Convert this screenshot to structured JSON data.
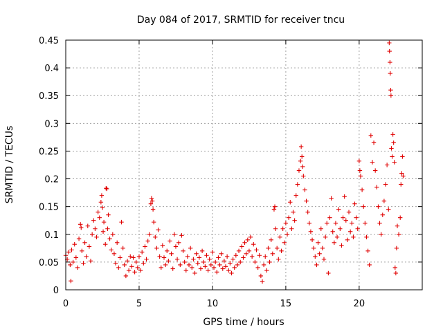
{
  "chart_data": {
    "type": "scatter",
    "title": "Day 084 of 2017, SRMTID for receiver tncu",
    "xlabel": "GPS time / hours",
    "ylabel": "SRMTID / TECUs",
    "xlim": [
      0,
      24.3
    ],
    "ylim": [
      0,
      0.45
    ],
    "x_ticks": [
      0,
      5,
      10,
      15,
      20
    ],
    "x_tick_labels": [
      "0",
      "5",
      "10",
      "15",
      "20"
    ],
    "y_ticks": [
      0,
      0.05,
      0.1,
      0.15,
      0.2,
      0.25,
      0.3,
      0.35,
      0.4,
      0.45
    ],
    "y_tick_labels": [
      "0",
      "0.05",
      "0.1",
      "0.15",
      "0.2",
      "0.25",
      "0.3",
      "0.35",
      "0.4",
      "0.45"
    ],
    "grid": true,
    "marker": "+",
    "color": "#e00000",
    "series": [
      {
        "name": "SRMTID",
        "points": [
          [
            0.0,
            0.062
          ],
          [
            0.1,
            0.055
          ],
          [
            0.2,
            0.068
          ],
          [
            0.3,
            0.045
          ],
          [
            0.35,
            0.016
          ],
          [
            0.4,
            0.072
          ],
          [
            0.5,
            0.05
          ],
          [
            0.6,
            0.082
          ],
          [
            0.7,
            0.058
          ],
          [
            0.8,
            0.04
          ],
          [
            0.9,
            0.092
          ],
          [
            1.0,
            0.118
          ],
          [
            1.05,
            0.112
          ],
          [
            1.1,
            0.07
          ],
          [
            1.2,
            0.048
          ],
          [
            1.3,
            0.085
          ],
          [
            1.4,
            0.06
          ],
          [
            1.5,
            0.115
          ],
          [
            1.6,
            0.078
          ],
          [
            1.7,
            0.052
          ],
          [
            1.8,
            0.1
          ],
          [
            1.9,
            0.125
          ],
          [
            2.0,
            0.11
          ],
          [
            2.1,
            0.095
          ],
          [
            2.2,
            0.14
          ],
          [
            2.3,
            0.13
          ],
          [
            2.4,
            0.158
          ],
          [
            2.45,
            0.17
          ],
          [
            2.5,
            0.148
          ],
          [
            2.55,
            0.105
          ],
          [
            2.6,
            0.122
          ],
          [
            2.7,
            0.082
          ],
          [
            2.75,
            0.183
          ],
          [
            2.8,
            0.182
          ],
          [
            2.85,
            0.11
          ],
          [
            2.9,
            0.135
          ],
          [
            3.0,
            0.092
          ],
          [
            3.1,
            0.072
          ],
          [
            3.2,
            0.1
          ],
          [
            3.3,
            0.065
          ],
          [
            3.4,
            0.048
          ],
          [
            3.5,
            0.085
          ],
          [
            3.6,
            0.04
          ],
          [
            3.7,
            0.058
          ],
          [
            3.8,
            0.122
          ],
          [
            3.9,
            0.075
          ],
          [
            4.0,
            0.045
          ],
          [
            4.1,
            0.025
          ],
          [
            4.2,
            0.052
          ],
          [
            4.3,
            0.035
          ],
          [
            4.4,
            0.06
          ],
          [
            4.5,
            0.042
          ],
          [
            4.6,
            0.058
          ],
          [
            4.7,
            0.032
          ],
          [
            4.8,
            0.05
          ],
          [
            4.9,
            0.04
          ],
          [
            5.0,
            0.06
          ],
          [
            5.1,
            0.035
          ],
          [
            5.2,
            0.068
          ],
          [
            5.3,
            0.048
          ],
          [
            5.4,
            0.078
          ],
          [
            5.5,
            0.055
          ],
          [
            5.6,
            0.088
          ],
          [
            5.7,
            0.1
          ],
          [
            5.8,
            0.155
          ],
          [
            5.85,
            0.165
          ],
          [
            5.9,
            0.16
          ],
          [
            5.95,
            0.145
          ],
          [
            6.0,
            0.122
          ],
          [
            6.1,
            0.095
          ],
          [
            6.2,
            0.075
          ],
          [
            6.3,
            0.108
          ],
          [
            6.4,
            0.06
          ],
          [
            6.5,
            0.04
          ],
          [
            6.6,
            0.08
          ],
          [
            6.7,
            0.058
          ],
          [
            6.8,
            0.045
          ],
          [
            6.9,
            0.07
          ],
          [
            7.0,
            0.052
          ],
          [
            7.1,
            0.088
          ],
          [
            7.2,
            0.065
          ],
          [
            7.3,
            0.038
          ],
          [
            7.4,
            0.1
          ],
          [
            7.5,
            0.078
          ],
          [
            7.6,
            0.055
          ],
          [
            7.7,
            0.085
          ],
          [
            7.8,
            0.045
          ],
          [
            7.9,
            0.098
          ],
          [
            8.0,
            0.07
          ],
          [
            8.1,
            0.05
          ],
          [
            8.2,
            0.035
          ],
          [
            8.3,
            0.06
          ],
          [
            8.4,
            0.045
          ],
          [
            8.5,
            0.075
          ],
          [
            8.6,
            0.04
          ],
          [
            8.7,
            0.055
          ],
          [
            8.8,
            0.03
          ],
          [
            8.9,
            0.065
          ],
          [
            9.0,
            0.048
          ],
          [
            9.1,
            0.058
          ],
          [
            9.2,
            0.038
          ],
          [
            9.3,
            0.07
          ],
          [
            9.4,
            0.05
          ],
          [
            9.5,
            0.042
          ],
          [
            9.6,
            0.062
          ],
          [
            9.7,
            0.035
          ],
          [
            9.8,
            0.055
          ],
          [
            9.9,
            0.045
          ],
          [
            10.0,
            0.068
          ],
          [
            10.1,
            0.04
          ],
          [
            10.2,
            0.05
          ],
          [
            10.3,
            0.032
          ],
          [
            10.4,
            0.058
          ],
          [
            10.5,
            0.045
          ],
          [
            10.6,
            0.065
          ],
          [
            10.7,
            0.038
          ],
          [
            10.8,
            0.052
          ],
          [
            10.9,
            0.042
          ],
          [
            11.0,
            0.06
          ],
          [
            11.1,
            0.035
          ],
          [
            11.2,
            0.048
          ],
          [
            11.3,
            0.03
          ],
          [
            11.4,
            0.055
          ],
          [
            11.5,
            0.04
          ],
          [
            11.6,
            0.062
          ],
          [
            11.7,
            0.045
          ],
          [
            11.8,
            0.07
          ],
          [
            11.9,
            0.05
          ],
          [
            12.0,
            0.078
          ],
          [
            12.1,
            0.058
          ],
          [
            12.2,
            0.085
          ],
          [
            12.3,
            0.065
          ],
          [
            12.4,
            0.09
          ],
          [
            12.5,
            0.07
          ],
          [
            12.6,
            0.095
          ],
          [
            12.7,
            0.06
          ],
          [
            12.8,
            0.082
          ],
          [
            12.9,
            0.05
          ],
          [
            13.0,
            0.072
          ],
          [
            13.1,
            0.04
          ],
          [
            13.2,
            0.062
          ],
          [
            13.3,
            0.025
          ],
          [
            13.4,
            0.015
          ],
          [
            13.5,
            0.045
          ],
          [
            13.6,
            0.06
          ],
          [
            13.7,
            0.035
          ],
          [
            13.8,
            0.075
          ],
          [
            13.9,
            0.05
          ],
          [
            14.0,
            0.09
          ],
          [
            14.1,
            0.065
          ],
          [
            14.2,
            0.145
          ],
          [
            14.25,
            0.15
          ],
          [
            14.3,
            0.11
          ],
          [
            14.4,
            0.075
          ],
          [
            14.5,
            0.055
          ],
          [
            14.6,
            0.095
          ],
          [
            14.7,
            0.07
          ],
          [
            14.8,
            0.11
          ],
          [
            14.9,
            0.085
          ],
          [
            15.0,
            0.12
          ],
          [
            15.1,
            0.1
          ],
          [
            15.2,
            0.13
          ],
          [
            15.3,
            0.158
          ],
          [
            15.4,
            0.11
          ],
          [
            15.5,
            0.14
          ],
          [
            15.6,
            0.125
          ],
          [
            15.7,
            0.17
          ],
          [
            15.8,
            0.19
          ],
          [
            15.9,
            0.215
          ],
          [
            16.0,
            0.232
          ],
          [
            16.05,
            0.258
          ],
          [
            16.1,
            0.24
          ],
          [
            16.15,
            0.222
          ],
          [
            16.2,
            0.205
          ],
          [
            16.3,
            0.18
          ],
          [
            16.4,
            0.16
          ],
          [
            16.5,
            0.14
          ],
          [
            16.6,
            0.12
          ],
          [
            16.7,
            0.105
          ],
          [
            16.8,
            0.09
          ],
          [
            16.9,
            0.075
          ],
          [
            17.0,
            0.06
          ],
          [
            17.1,
            0.045
          ],
          [
            17.2,
            0.085
          ],
          [
            17.3,
            0.065
          ],
          [
            17.4,
            0.11
          ],
          [
            17.5,
            0.075
          ],
          [
            17.6,
            0.055
          ],
          [
            17.7,
            0.095
          ],
          [
            17.8,
            0.12
          ],
          [
            17.9,
            0.03
          ],
          [
            18.0,
            0.13
          ],
          [
            18.1,
            0.165
          ],
          [
            18.2,
            0.105
          ],
          [
            18.3,
            0.085
          ],
          [
            18.4,
            0.12
          ],
          [
            18.5,
            0.095
          ],
          [
            18.6,
            0.145
          ],
          [
            18.7,
            0.11
          ],
          [
            18.8,
            0.08
          ],
          [
            18.9,
            0.13
          ],
          [
            19.0,
            0.168
          ],
          [
            19.1,
            0.125
          ],
          [
            19.2,
            0.09
          ],
          [
            19.3,
            0.14
          ],
          [
            19.4,
            0.105
          ],
          [
            19.5,
            0.12
          ],
          [
            19.6,
            0.095
          ],
          [
            19.7,
            0.155
          ],
          [
            19.8,
            0.13
          ],
          [
            19.9,
            0.11
          ],
          [
            20.0,
            0.232
          ],
          [
            20.05,
            0.215
          ],
          [
            20.1,
            0.205
          ],
          [
            20.2,
            0.18
          ],
          [
            20.3,
            0.15
          ],
          [
            20.4,
            0.12
          ],
          [
            20.5,
            0.095
          ],
          [
            20.6,
            0.07
          ],
          [
            20.7,
            0.045
          ],
          [
            20.8,
            0.278
          ],
          [
            20.9,
            0.23
          ],
          [
            21.0,
            0.265
          ],
          [
            21.1,
            0.215
          ],
          [
            21.2,
            0.185
          ],
          [
            21.3,
            0.15
          ],
          [
            21.4,
            0.12
          ],
          [
            21.5,
            0.1
          ],
          [
            21.6,
            0.135
          ],
          [
            21.7,
            0.16
          ],
          [
            21.8,
            0.19
          ],
          [
            21.9,
            0.225
          ],
          [
            22.0,
            0.145
          ],
          [
            22.05,
            0.445
          ],
          [
            22.07,
            0.43
          ],
          [
            22.1,
            0.41
          ],
          [
            22.12,
            0.39
          ],
          [
            22.15,
            0.36
          ],
          [
            22.17,
            0.35
          ],
          [
            22.2,
            0.255
          ],
          [
            22.25,
            0.24
          ],
          [
            22.3,
            0.28
          ],
          [
            22.35,
            0.265
          ],
          [
            22.4,
            0.23
          ],
          [
            22.45,
            0.04
          ],
          [
            22.5,
            0.03
          ],
          [
            22.55,
            0.075
          ],
          [
            22.6,
            0.115
          ],
          [
            22.7,
            0.1
          ],
          [
            22.8,
            0.13
          ],
          [
            22.85,
            0.19
          ],
          [
            22.9,
            0.21
          ],
          [
            22.95,
            0.24
          ],
          [
            23.0,
            0.205
          ]
        ]
      }
    ]
  }
}
